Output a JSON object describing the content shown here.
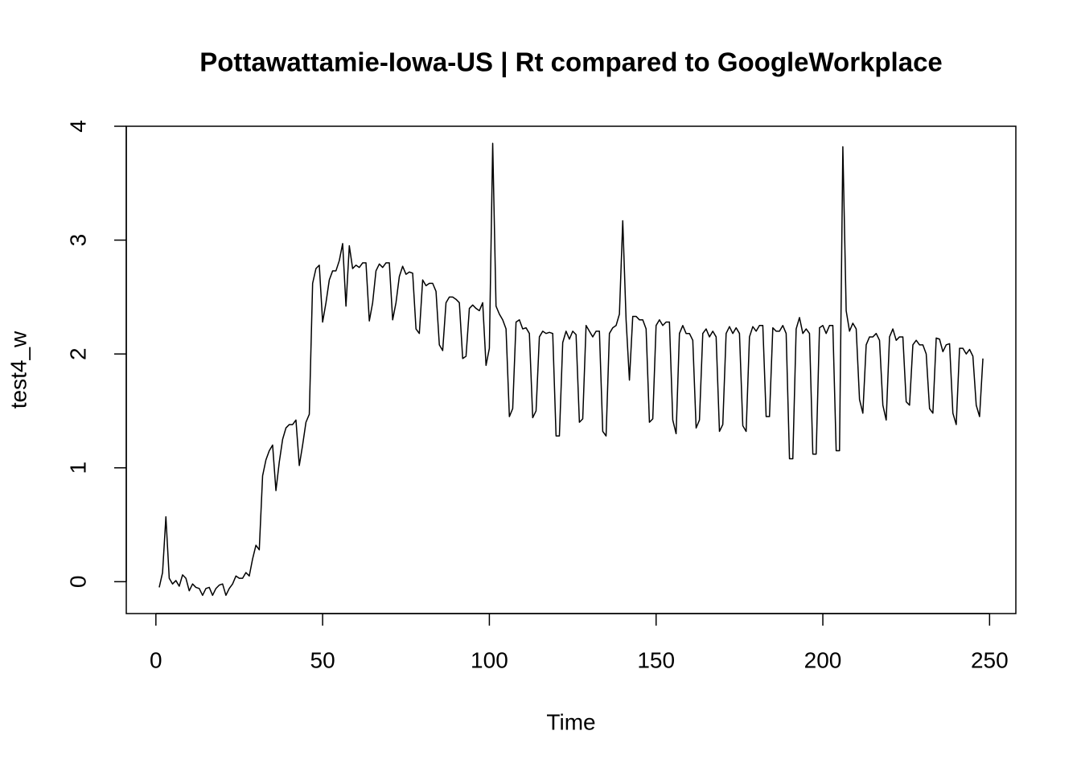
{
  "chart_data": {
    "type": "line",
    "title": "Pottawattamie-Iowa-US | Rt compared to GoogleWorkplace",
    "xlabel": "Time",
    "ylabel": "test4_w",
    "color": "#000000",
    "x": [
      1,
      2,
      3,
      4,
      5,
      6,
      7,
      8,
      9,
      10,
      11,
      12,
      13,
      14,
      15,
      16,
      17,
      18,
      19,
      20,
      21,
      22,
      23,
      24,
      25,
      26,
      27,
      28,
      29,
      30,
      31,
      32,
      33,
      34,
      35,
      36,
      37,
      38,
      39,
      40,
      41,
      42,
      43,
      44,
      45,
      46,
      47,
      48,
      49,
      50,
      51,
      52,
      53,
      54,
      55,
      56,
      57,
      58,
      59,
      60,
      61,
      62,
      63,
      64,
      65,
      66,
      67,
      68,
      69,
      70,
      71,
      72,
      73,
      74,
      75,
      76,
      77,
      78,
      79,
      80,
      81,
      82,
      83,
      84,
      85,
      86,
      87,
      88,
      89,
      90,
      91,
      92,
      93,
      94,
      95,
      96,
      97,
      98,
      99,
      100,
      101,
      102,
      103,
      104,
      105,
      106,
      107,
      108,
      109,
      110,
      111,
      112,
      113,
      114,
      115,
      116,
      117,
      118,
      119,
      120,
      121,
      122,
      123,
      124,
      125,
      126,
      127,
      128,
      129,
      130,
      131,
      132,
      133,
      134,
      135,
      136,
      137,
      138,
      139,
      140,
      141,
      142,
      143,
      144,
      145,
      146,
      147,
      148,
      149,
      150,
      151,
      152,
      153,
      154,
      155,
      156,
      157,
      158,
      159,
      160,
      161,
      162,
      163,
      164,
      165,
      166,
      167,
      168,
      169,
      170,
      171,
      172,
      173,
      174,
      175,
      176,
      177,
      178,
      179,
      180,
      181,
      182,
      183,
      184,
      185,
      186,
      187,
      188,
      189,
      190,
      191,
      192,
      193,
      194,
      195,
      196,
      197,
      198,
      199,
      200,
      201,
      202,
      203,
      204,
      205,
      206,
      207,
      208,
      209,
      210,
      211,
      212,
      213,
      214,
      215,
      216,
      217,
      218,
      219,
      220,
      221,
      222,
      223,
      224,
      225,
      226,
      227,
      228,
      229,
      230,
      231,
      232,
      233,
      234,
      235,
      236,
      237,
      238,
      239,
      240,
      241,
      242,
      243,
      244,
      245,
      246,
      247,
      248
    ],
    "values": [
      -0.05,
      0.08,
      0.57,
      0.03,
      -0.02,
      0.01,
      -0.04,
      0.06,
      0.03,
      -0.08,
      -0.02,
      -0.05,
      -0.06,
      -0.12,
      -0.06,
      -0.05,
      -0.12,
      -0.06,
      -0.03,
      -0.02,
      -0.12,
      -0.06,
      -0.02,
      0.05,
      0.03,
      0.03,
      0.08,
      0.05,
      0.2,
      0.32,
      0.28,
      0.93,
      1.07,
      1.15,
      1.2,
      0.8,
      1.05,
      1.25,
      1.35,
      1.38,
      1.38,
      1.42,
      1.02,
      1.2,
      1.4,
      1.47,
      2.62,
      2.75,
      2.78,
      2.28,
      2.45,
      2.65,
      2.73,
      2.73,
      2.82,
      2.97,
      2.42,
      2.95,
      2.75,
      2.78,
      2.76,
      2.8,
      2.8,
      2.29,
      2.45,
      2.73,
      2.79,
      2.76,
      2.8,
      2.8,
      2.3,
      2.45,
      2.68,
      2.77,
      2.7,
      2.72,
      2.71,
      2.22,
      2.18,
      2.65,
      2.6,
      2.62,
      2.62,
      2.55,
      2.08,
      2.03,
      2.45,
      2.5,
      2.5,
      2.48,
      2.45,
      1.96,
      1.98,
      2.4,
      2.43,
      2.4,
      2.38,
      2.45,
      1.9,
      2.05,
      3.85,
      2.42,
      2.35,
      2.3,
      2.22,
      1.45,
      1.52,
      2.28,
      2.3,
      2.22,
      2.23,
      2.18,
      1.44,
      1.5,
      2.15,
      2.2,
      2.18,
      2.19,
      2.18,
      1.28,
      1.28,
      2.1,
      2.2,
      2.13,
      2.2,
      2.17,
      1.4,
      1.43,
      2.25,
      2.2,
      2.15,
      2.2,
      2.2,
      1.32,
      1.28,
      2.18,
      2.23,
      2.25,
      2.35,
      3.17,
      2.3,
      1.77,
      2.33,
      2.33,
      2.3,
      2.3,
      2.22,
      1.4,
      1.43,
      2.25,
      2.3,
      2.25,
      2.28,
      2.28,
      1.42,
      1.3,
      2.18,
      2.25,
      2.18,
      2.18,
      2.12,
      1.35,
      1.42,
      2.18,
      2.22,
      2.15,
      2.2,
      2.15,
      1.32,
      1.38,
      2.18,
      2.24,
      2.18,
      2.23,
      2.18,
      1.37,
      1.32,
      2.15,
      2.24,
      2.2,
      2.25,
      2.25,
      1.45,
      1.45,
      2.23,
      2.2,
      2.2,
      2.25,
      2.18,
      1.08,
      1.08,
      2.22,
      2.32,
      2.18,
      2.22,
      2.18,
      1.12,
      1.12,
      2.23,
      2.25,
      2.18,
      2.25,
      2.25,
      1.15,
      1.15,
      3.82,
      2.38,
      2.2,
      2.27,
      2.22,
      1.6,
      1.48,
      2.08,
      2.15,
      2.15,
      2.18,
      2.12,
      1.55,
      1.42,
      2.15,
      2.22,
      2.12,
      2.15,
      2.15,
      1.58,
      1.55,
      2.08,
      2.12,
      2.08,
      2.08,
      2.0,
      1.52,
      1.48,
      2.14,
      2.13,
      2.02,
      2.08,
      2.09,
      1.48,
      1.38,
      2.05,
      2.05,
      2.0,
      2.04,
      1.98,
      1.55,
      1.45,
      1.96
    ],
    "xlim": [
      -8.88,
      257.88
    ],
    "ylim": [
      -0.28,
      4.0
    ],
    "xticks": [
      0,
      50,
      100,
      150,
      200,
      250
    ],
    "yticks": [
      0,
      1,
      2,
      3,
      4
    ]
  }
}
